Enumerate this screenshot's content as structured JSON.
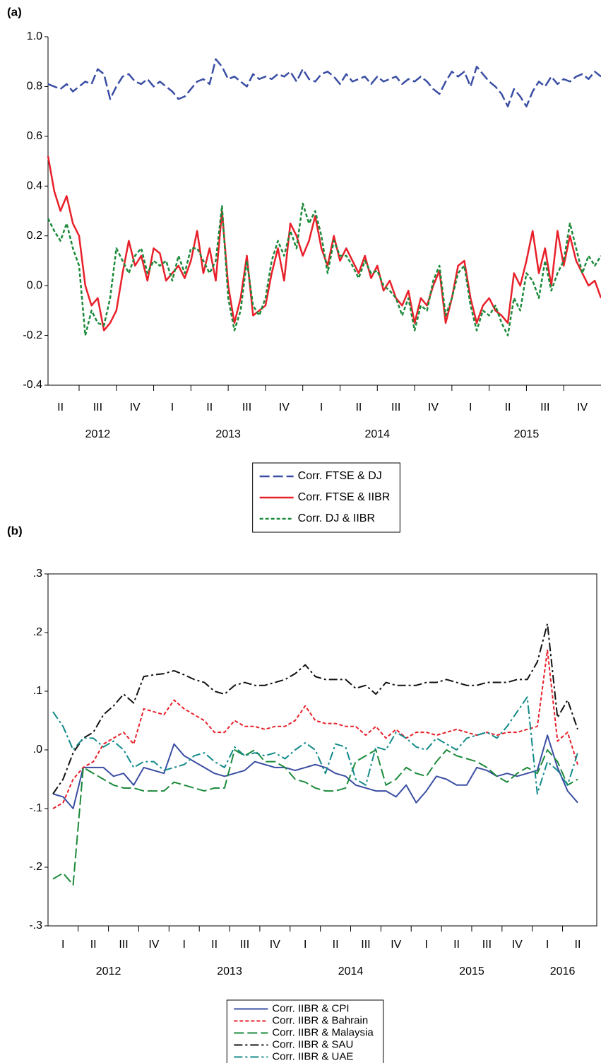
{
  "chart_data": [
    {
      "type": "line",
      "title": "(a)",
      "categories": [
        null,
        null,
        "II",
        null,
        null,
        null,
        null,
        null,
        "III",
        null,
        null,
        null,
        null,
        null,
        "IV",
        null,
        null,
        null,
        null,
        null,
        "I",
        null,
        null,
        null,
        null,
        null,
        "II",
        null,
        null,
        null,
        null,
        null,
        "III",
        null,
        null,
        null,
        null,
        null,
        "IV",
        null,
        null,
        null,
        null,
        null,
        "I",
        null,
        null,
        null,
        null,
        null,
        "II",
        null,
        null,
        null,
        null,
        null,
        "III",
        null,
        null,
        null,
        null,
        null,
        "IV",
        null,
        null,
        null,
        null,
        null,
        "I",
        null,
        null,
        null,
        null,
        null,
        "II",
        null,
        null,
        null,
        null,
        null,
        "III",
        null,
        null,
        null,
        null,
        null,
        "IV",
        null,
        null,
        null
      ],
      "years": [
        "2012",
        "2013",
        "2014",
        "2015"
      ],
      "ylim": [
        -0.4,
        1.0
      ],
      "yticks": [
        -0.4,
        -0.2,
        {
          "value": 0,
          "label": "0.0"
        },
        0.2,
        0.4,
        0.6,
        0.8,
        {
          "value": 1,
          "label": "1.0"
        }
      ],
      "legend": "bottom",
      "box": false,
      "series": [
        {
          "name": "Corr. FTSE & DJ",
          "color": "#3a4ea3",
          "dash": "long-dash",
          "values": [
            0.81,
            0.8,
            0.79,
            0.81,
            0.78,
            0.8,
            0.82,
            0.81,
            0.87,
            0.85,
            0.75,
            0.8,
            0.84,
            0.85,
            0.82,
            0.81,
            0.83,
            0.8,
            0.82,
            0.8,
            0.78,
            0.75,
            0.76,
            0.79,
            0.82,
            0.83,
            0.81,
            0.91,
            0.88,
            0.83,
            0.84,
            0.82,
            0.8,
            0.85,
            0.83,
            0.84,
            0.83,
            0.85,
            0.84,
            0.86,
            0.82,
            0.87,
            0.83,
            0.82,
            0.85,
            0.86,
            0.84,
            0.81,
            0.85,
            0.82,
            0.83,
            0.84,
            0.81,
            0.84,
            0.82,
            0.83,
            0.84,
            0.81,
            0.83,
            0.82,
            0.84,
            0.82,
            0.79,
            0.77,
            0.82,
            0.86,
            0.84,
            0.86,
            0.8,
            0.88,
            0.85,
            0.82,
            0.8,
            0.77,
            0.72,
            0.79,
            0.76,
            0.72,
            0.78,
            0.82,
            0.8,
            0.84,
            0.81,
            0.83,
            0.82,
            0.84,
            0.85,
            0.83,
            0.86,
            0.84
          ]
        },
        {
          "name": "Corr. FTSE & IIBR",
          "color": "#e8202a",
          "dash": "solid",
          "values": [
            0.52,
            0.38,
            0.3,
            0.36,
            0.25,
            0.2,
            0.0,
            -0.08,
            -0.05,
            -0.18,
            -0.15,
            -0.1,
            0.05,
            0.18,
            0.08,
            0.12,
            0.02,
            0.15,
            0.13,
            0.02,
            0.05,
            0.08,
            0.03,
            0.1,
            0.22,
            0.05,
            0.15,
            0.02,
            0.3,
            0.0,
            -0.15,
            -0.05,
            0.12,
            -0.12,
            -0.1,
            -0.08,
            0.05,
            0.15,
            0.02,
            0.25,
            0.2,
            0.12,
            0.18,
            0.28,
            0.15,
            0.08,
            0.2,
            0.1,
            0.15,
            0.1,
            0.05,
            0.12,
            0.03,
            0.08,
            -0.02,
            0.02,
            -0.05,
            -0.08,
            -0.02,
            -0.15,
            -0.05,
            -0.08,
            0.0,
            0.06,
            -0.15,
            -0.05,
            0.08,
            0.1,
            -0.05,
            -0.15,
            -0.08,
            -0.05,
            -0.1,
            -0.12,
            -0.15,
            0.05,
            0.0,
            0.1,
            0.22,
            0.05,
            0.15,
            0.0,
            0.22,
            0.08,
            0.2,
            0.1,
            0.05,
            0.0,
            0.02,
            -0.05
          ]
        },
        {
          "name": "Corr. DJ & IIBR",
          "color": "#1b8a3a",
          "dash": "short-dash",
          "values": [
            0.27,
            0.22,
            0.18,
            0.25,
            0.15,
            0.08,
            -0.2,
            -0.1,
            -0.15,
            -0.16,
            -0.05,
            0.15,
            0.1,
            0.05,
            0.12,
            0.15,
            0.05,
            0.1,
            0.08,
            0.1,
            0.02,
            0.12,
            0.05,
            0.15,
            0.15,
            0.1,
            0.05,
            0.1,
            0.32,
            -0.05,
            -0.18,
            -0.1,
            0.1,
            -0.08,
            -0.12,
            -0.05,
            0.1,
            0.18,
            0.12,
            0.22,
            0.15,
            0.33,
            0.25,
            0.3,
            0.2,
            0.05,
            0.18,
            0.12,
            0.12,
            0.08,
            0.03,
            0.1,
            0.05,
            0.06,
            0.0,
            -0.02,
            -0.05,
            -0.12,
            -0.05,
            -0.18,
            -0.08,
            -0.1,
            0.02,
            0.08,
            -0.12,
            -0.05,
            0.05,
            0.08,
            -0.08,
            -0.18,
            -0.1,
            -0.12,
            -0.08,
            -0.15,
            -0.2,
            -0.05,
            -0.1,
            0.05,
            0.02,
            -0.05,
            0.1,
            -0.02,
            0.05,
            0.1,
            0.25,
            0.15,
            0.05,
            0.12,
            0.08,
            0.12
          ]
        }
      ]
    },
    {
      "type": "line",
      "title": "(b)",
      "categories": [
        null,
        "I",
        null,
        null,
        "II",
        null,
        null,
        "III",
        null,
        null,
        "IV",
        null,
        null,
        "I",
        null,
        null,
        "II",
        null,
        null,
        "III",
        null,
        null,
        "IV",
        null,
        null,
        "I",
        null,
        null,
        "II",
        null,
        null,
        "III",
        null,
        null,
        "IV",
        null,
        null,
        "I",
        null,
        null,
        "II",
        null,
        null,
        "III",
        null,
        null,
        "IV",
        null,
        null,
        "I",
        null,
        null,
        "II"
      ],
      "years": [
        "2012",
        "2013",
        "2014",
        "2015",
        "2016"
      ],
      "ylim": [
        -0.3,
        0.3
      ],
      "yticks": [
        {
          "value": -0.3,
          "label": "-.3"
        },
        {
          "value": -0.2,
          "label": "-.2"
        },
        {
          "value": -0.1,
          "label": "-.1"
        },
        {
          "value": 0,
          "label": ".0"
        },
        {
          "value": 0.1,
          "label": ".1"
        },
        {
          "value": 0.2,
          "label": ".2"
        },
        {
          "value": 0.3,
          "label": ".3"
        }
      ],
      "legend": "bottom",
      "box": true,
      "series": [
        {
          "name": "Corr. IIBR & CPI",
          "color": "#3a4ea3",
          "dash": "solid",
          "values": [
            -0.075,
            -0.08,
            -0.1,
            -0.03,
            -0.03,
            -0.03,
            -0.045,
            -0.04,
            -0.06,
            -0.03,
            -0.035,
            -0.04,
            0.01,
            -0.01,
            -0.02,
            -0.03,
            -0.04,
            -0.045,
            -0.04,
            -0.035,
            -0.02,
            -0.025,
            -0.03,
            -0.03,
            -0.035,
            -0.03,
            -0.025,
            -0.03,
            -0.04,
            -0.045,
            -0.06,
            -0.065,
            -0.07,
            -0.07,
            -0.08,
            -0.06,
            -0.09,
            -0.07,
            -0.045,
            -0.05,
            -0.06,
            -0.06,
            -0.03,
            -0.035,
            -0.045,
            -0.04,
            -0.045,
            -0.04,
            -0.035,
            0.025,
            -0.03,
            -0.07,
            -0.09
          ]
        },
        {
          "name": "Corr. IIBR & Bahrain",
          "color": "#e8202a",
          "dash": "short-dash",
          "values": [
            -0.1,
            -0.09,
            -0.05,
            -0.03,
            -0.02,
            0.01,
            0.02,
            0.03,
            0.01,
            0.07,
            0.065,
            0.06,
            0.085,
            0.07,
            0.06,
            0.05,
            0.03,
            0.03,
            0.05,
            0.04,
            0.04,
            0.035,
            0.04,
            0.04,
            0.05,
            0.075,
            0.05,
            0.045,
            0.045,
            0.04,
            0.04,
            0.025,
            0.04,
            0.02,
            0.035,
            0.02,
            0.03,
            0.03,
            0.025,
            0.03,
            0.035,
            0.03,
            0.025,
            0.03,
            0.025,
            0.03,
            0.03,
            0.035,
            0.04,
            0.17,
            0.015,
            0.03,
            -0.025
          ]
        },
        {
          "name": "Corr. IIBR & Malaysia",
          "color": "#1b8a3a",
          "dash": "long-dash",
          "values": [
            -0.22,
            -0.21,
            -0.23,
            -0.03,
            -0.04,
            -0.05,
            -0.06,
            -0.065,
            -0.065,
            -0.07,
            -0.07,
            -0.07,
            -0.055,
            -0.06,
            -0.065,
            -0.07,
            -0.065,
            -0.065,
            0.0,
            -0.01,
            0.0,
            -0.02,
            -0.02,
            -0.03,
            -0.05,
            -0.055,
            -0.065,
            -0.07,
            -0.07,
            -0.065,
            -0.02,
            -0.01,
            0.0,
            -0.06,
            -0.05,
            -0.03,
            -0.04,
            -0.045,
            -0.02,
            0.0,
            -0.01,
            -0.015,
            -0.02,
            -0.03,
            -0.045,
            -0.055,
            -0.04,
            -0.03,
            -0.04,
            0.0,
            -0.02,
            -0.06,
            -0.05
          ]
        },
        {
          "name": "Corr. IIBR & SAU",
          "color": "#111111",
          "dash": "dash-dot",
          "values": [
            -0.075,
            -0.05,
            -0.005,
            0.02,
            0.03,
            0.06,
            0.075,
            0.095,
            0.08,
            0.125,
            0.128,
            0.13,
            0.135,
            0.128,
            0.12,
            0.115,
            0.1,
            0.095,
            0.11,
            0.115,
            0.11,
            0.11,
            0.115,
            0.12,
            0.13,
            0.145,
            0.125,
            0.12,
            0.12,
            0.12,
            0.105,
            0.11,
            0.095,
            0.115,
            0.11,
            0.11,
            0.11,
            0.115,
            0.115,
            0.12,
            0.115,
            0.11,
            0.11,
            0.115,
            0.115,
            0.115,
            0.12,
            0.12,
            0.15,
            0.215,
            0.055,
            0.085,
            0.035
          ]
        },
        {
          "name": "Corr. IIBR & UAE",
          "color": "#138a8a",
          "dash": "dash-dot",
          "values": [
            0.065,
            0.04,
            0.0,
            0.02,
            0.02,
            0.005,
            0.015,
            0.0,
            -0.03,
            -0.02,
            -0.02,
            -0.035,
            -0.03,
            -0.025,
            -0.01,
            -0.005,
            -0.02,
            -0.03,
            0.005,
            -0.01,
            -0.005,
            -0.01,
            -0.005,
            -0.015,
            0.0,
            0.012,
            0.0,
            -0.04,
            0.01,
            0.005,
            -0.05,
            -0.06,
            0.005,
            0.0,
            0.03,
            0.02,
            0.005,
            0.0,
            0.02,
            0.01,
            0.0,
            0.02,
            0.025,
            0.03,
            0.02,
            0.04,
            0.065,
            0.09,
            -0.075,
            -0.02,
            -0.035,
            -0.06,
            -0.005
          ]
        }
      ]
    }
  ]
}
